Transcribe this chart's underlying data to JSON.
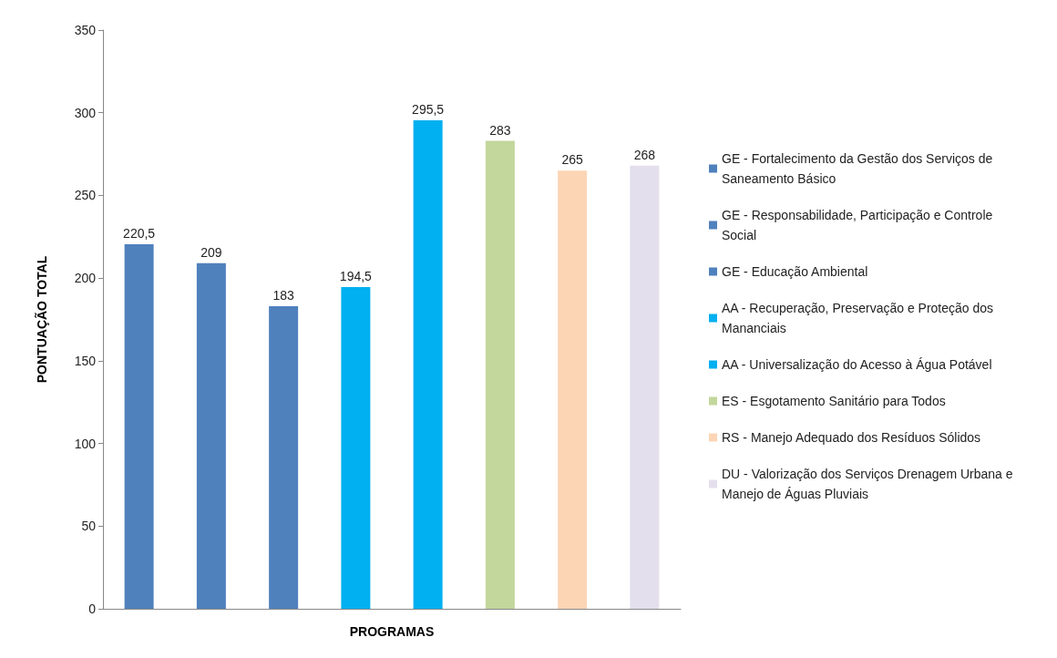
{
  "chart_data": {
    "type": "bar",
    "xlabel": "PROGRAMAS",
    "ylabel": "PONTUAÇÃO TOTAL",
    "categories": [
      null,
      null,
      null,
      null,
      null,
      null,
      null,
      null
    ],
    "series": [
      {
        "name": "GE - Fortalecimento da Gestão dos Serviços de Saneamento Básico",
        "color": "#4f81bd",
        "values": [
          220.5,
          null,
          null,
          null,
          null,
          null,
          null,
          null
        ],
        "value_labels": [
          "220,5",
          null,
          null,
          null,
          null,
          null,
          null,
          null
        ]
      },
      {
        "name": "GE - Responsabilidade, Participação e Controle Social",
        "color": "#4f81bd",
        "values": [
          null,
          209,
          null,
          null,
          null,
          null,
          null,
          null
        ],
        "value_labels": [
          null,
          "209",
          null,
          null,
          null,
          null,
          null,
          null
        ]
      },
      {
        "name": "GE - Educação Ambiental",
        "color": "#4f81bd",
        "values": [
          null,
          null,
          183,
          null,
          null,
          null,
          null,
          null
        ],
        "value_labels": [
          null,
          null,
          "183",
          null,
          null,
          null,
          null,
          null
        ]
      },
      {
        "name": "AA - Recuperação, Preservação e Proteção dos Mananciais",
        "color": "#00b0f0",
        "values": [
          null,
          null,
          null,
          194.5,
          null,
          null,
          null,
          null
        ],
        "value_labels": [
          null,
          null,
          null,
          "194,5",
          null,
          null,
          null,
          null
        ]
      },
      {
        "name": "AA - Universalização do Acesso à Água Potável",
        "color": "#00b0f0",
        "values": [
          null,
          null,
          null,
          null,
          295.5,
          null,
          null,
          null
        ],
        "value_labels": [
          null,
          null,
          null,
          null,
          "295,5",
          null,
          null,
          null
        ]
      },
      {
        "name": "ES - Esgotamento Sanitário para Todos",
        "color": "#c3d69b",
        "values": [
          null,
          null,
          null,
          null,
          null,
          283,
          null,
          null
        ],
        "value_labels": [
          null,
          null,
          null,
          null,
          null,
          "283",
          null,
          null
        ]
      },
      {
        "name": "RS - Manejo Adequado dos Resíduos Sólidos",
        "color": "#fcd5b5",
        "values": [
          null,
          null,
          null,
          null,
          null,
          null,
          265,
          null
        ],
        "value_labels": [
          null,
          null,
          null,
          null,
          null,
          null,
          "265",
          null
        ]
      },
      {
        "name": "DU - Valorização dos Serviços Drenagem Urbana e Manejo de Águas Pluviais",
        "color": "#e4dfec",
        "values": [
          null,
          null,
          null,
          null,
          null,
          null,
          null,
          268
        ],
        "value_labels": [
          null,
          null,
          null,
          null,
          null,
          null,
          null,
          "268"
        ]
      }
    ],
    "ylim": [
      0,
      350
    ],
    "yticks": [
      0,
      50,
      100,
      150,
      200,
      250,
      300,
      350
    ],
    "grid": false,
    "legend": "right"
  }
}
